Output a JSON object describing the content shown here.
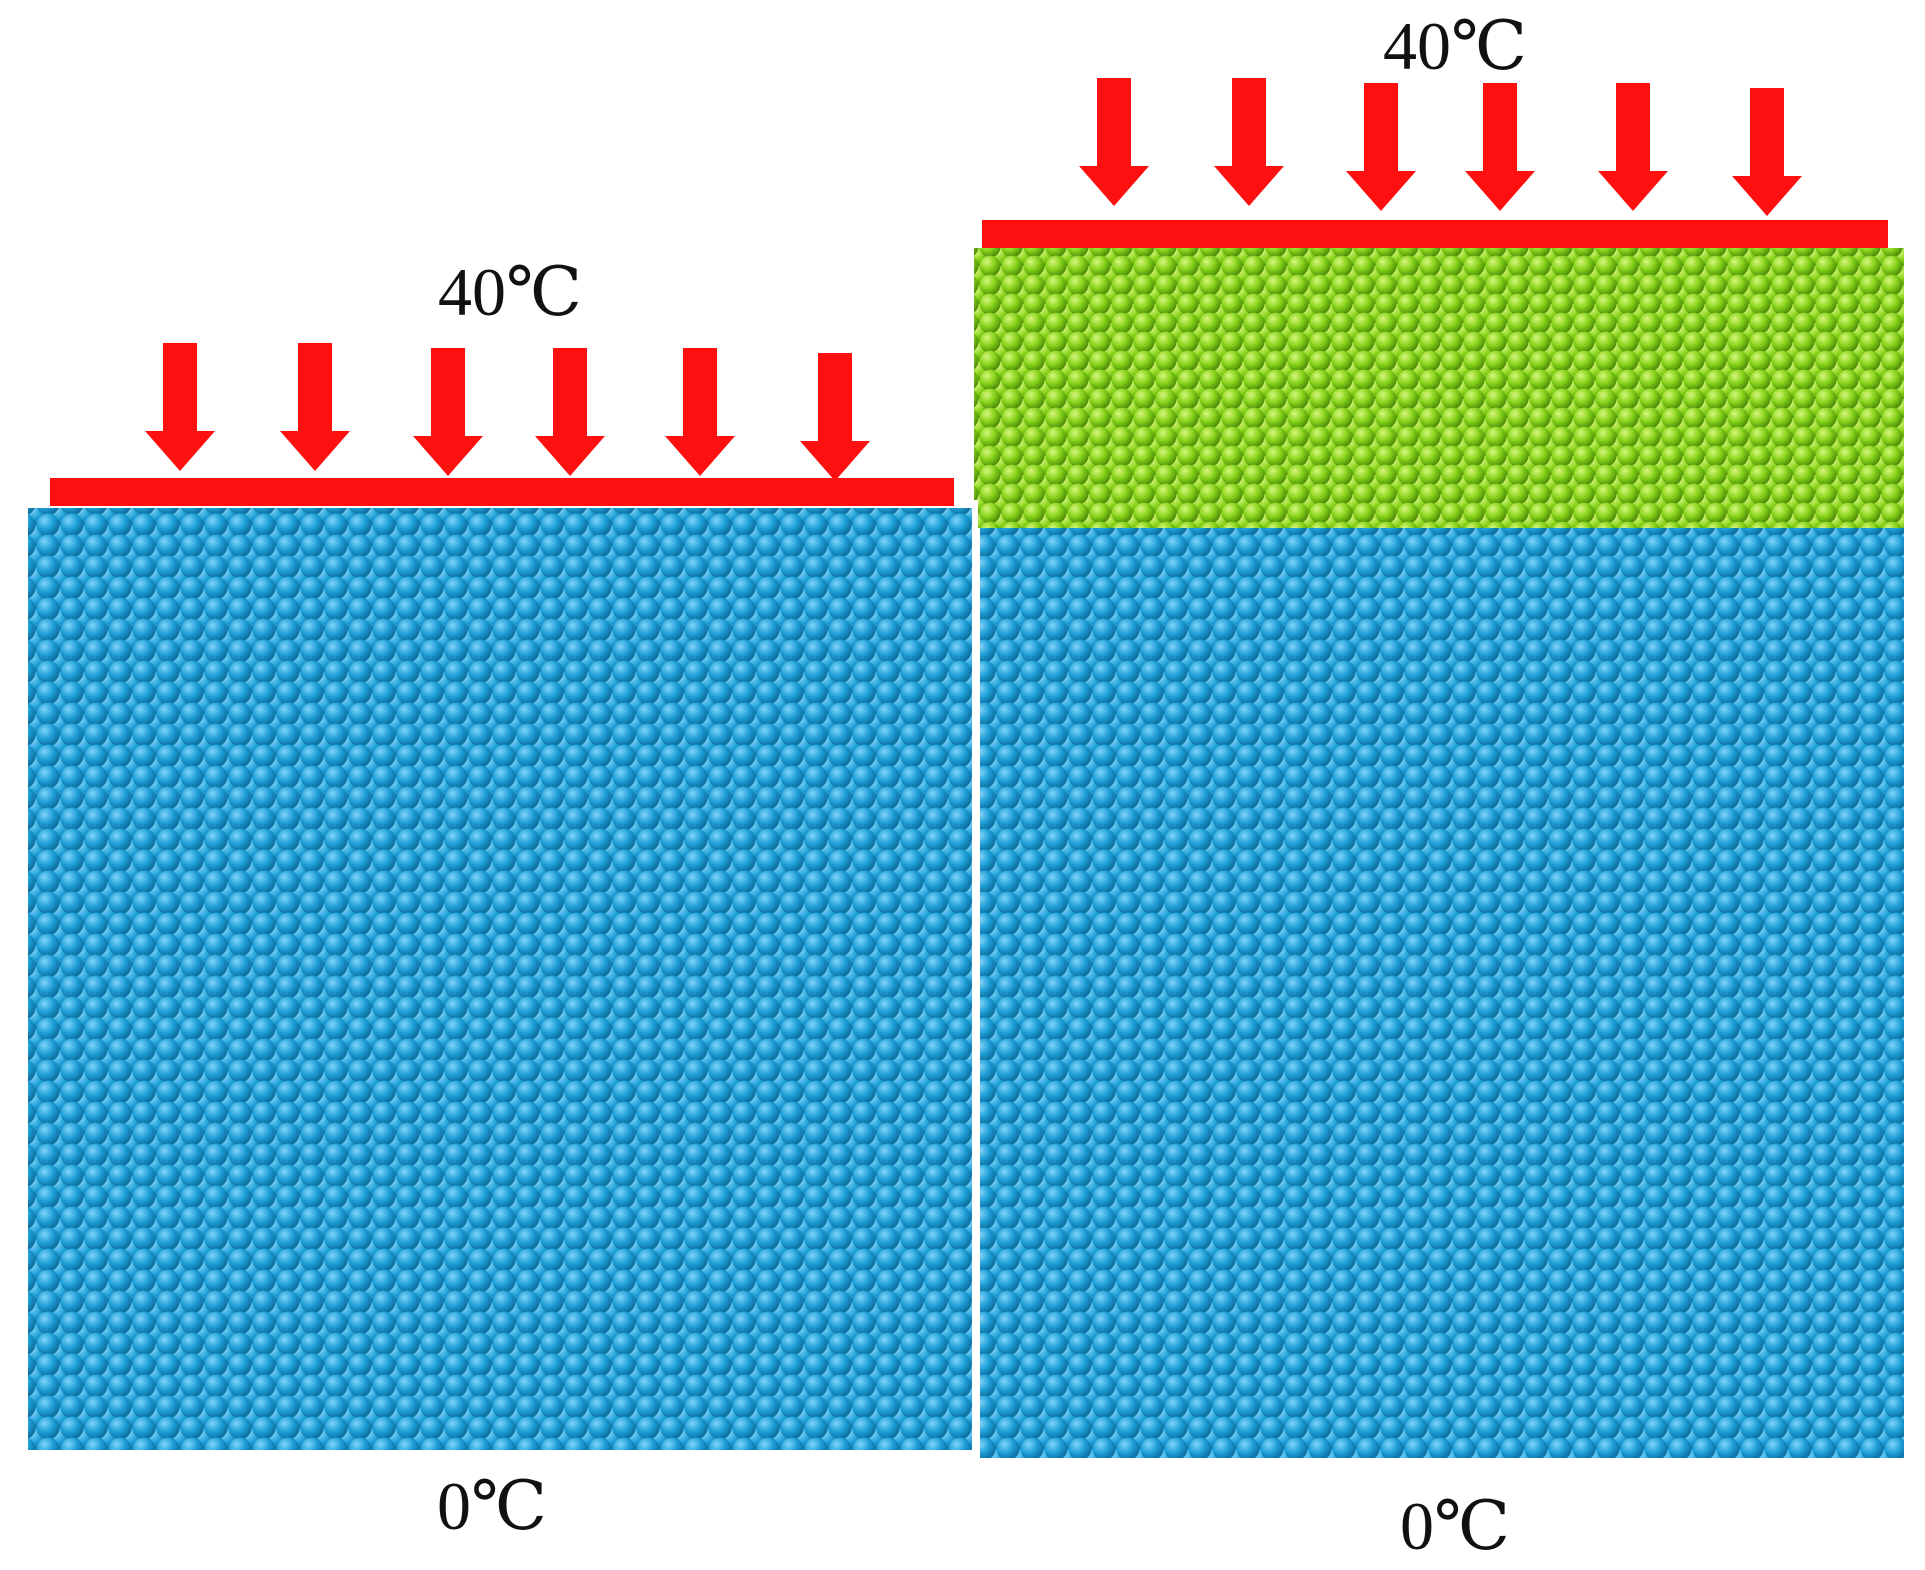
{
  "panels": [
    {
      "id": "left",
      "top_temperature": "40℃",
      "bottom_temperature": "0℃",
      "layers": [
        {
          "material": "blue-particles",
          "color": "#1E9FD8"
        }
      ],
      "load_arrow_count": 6
    },
    {
      "id": "right",
      "top_temperature": "40℃",
      "bottom_temperature": "0℃",
      "layers": [
        {
          "material": "green-particles",
          "color": "#86D21A"
        },
        {
          "material": "blue-particles",
          "color": "#1E9FD8"
        }
      ],
      "load_arrow_count": 6
    }
  ],
  "colors": {
    "load_plate": "#FF1010",
    "load_arrow": "#FF1010",
    "blue_particle": "#1E9FD8",
    "green_particle": "#86D21A"
  }
}
